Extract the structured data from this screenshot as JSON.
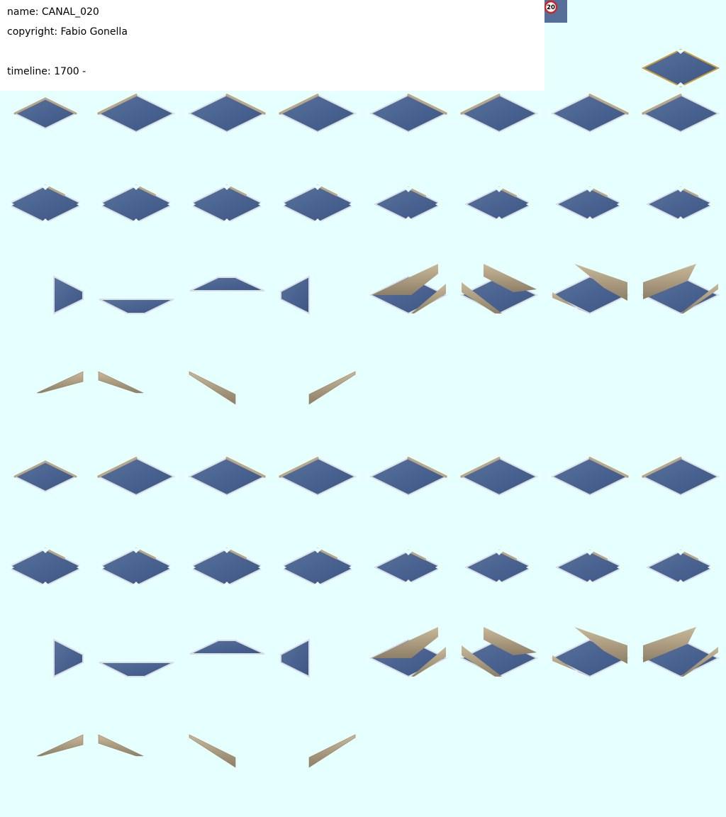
{
  "meta": {
    "name_line": "name: CANAL_020",
    "copyright_line": "copyright: Fabio Gonella",
    "timeline_line": "timeline: 1700 -"
  },
  "speed_sign": {
    "label": "20",
    "icon": "speed-limit-sign-icon"
  },
  "colors": {
    "background": "#e6ffff",
    "panel": "#ffffff",
    "water": "#4d6690",
    "water_dark": "#3c547e",
    "water_light": "#6b84ac",
    "embankment": "#b8a88a",
    "embankment_dark": "#8d7f66",
    "edge": "#d8dde6",
    "preview_border": "#c9a040",
    "sign_red": "#d42020"
  },
  "tile_sheet": {
    "columns": 8,
    "rows": 8,
    "preview_tile": "canal-straight",
    "row_contents": [
      [
        "canal-end",
        "canal-straight",
        "canal-straight",
        "canal-straight",
        "canal-straight",
        "canal-straight",
        "canal-straight",
        "canal-straight"
      ],
      [
        "canal-cross",
        "canal-cross",
        "canal-cross",
        "canal-cross",
        "canal-tee",
        "canal-tee",
        "canal-tee",
        "canal-tee"
      ],
      [
        "canal-corner",
        "canal-corner",
        "canal-corner",
        "canal-corner",
        "canal-slope",
        "canal-slope",
        "canal-slope",
        "canal-slope"
      ],
      [
        "canal-bank",
        "canal-bank",
        "canal-bank",
        "canal-bank",
        "",
        "",
        "",
        ""
      ],
      [
        "canal-end",
        "canal-straight",
        "canal-straight",
        "canal-straight",
        "canal-straight",
        "canal-straight",
        "canal-straight",
        "canal-straight"
      ],
      [
        "canal-cross",
        "canal-cross",
        "canal-cross",
        "canal-cross",
        "canal-tee",
        "canal-tee",
        "canal-tee",
        "canal-tee"
      ],
      [
        "canal-corner",
        "canal-corner",
        "canal-corner",
        "canal-corner",
        "canal-slope",
        "canal-slope",
        "canal-slope",
        "canal-slope"
      ],
      [
        "canal-bank",
        "canal-bank",
        "canal-bank",
        "canal-bank",
        "",
        "",
        "",
        ""
      ]
    ]
  }
}
